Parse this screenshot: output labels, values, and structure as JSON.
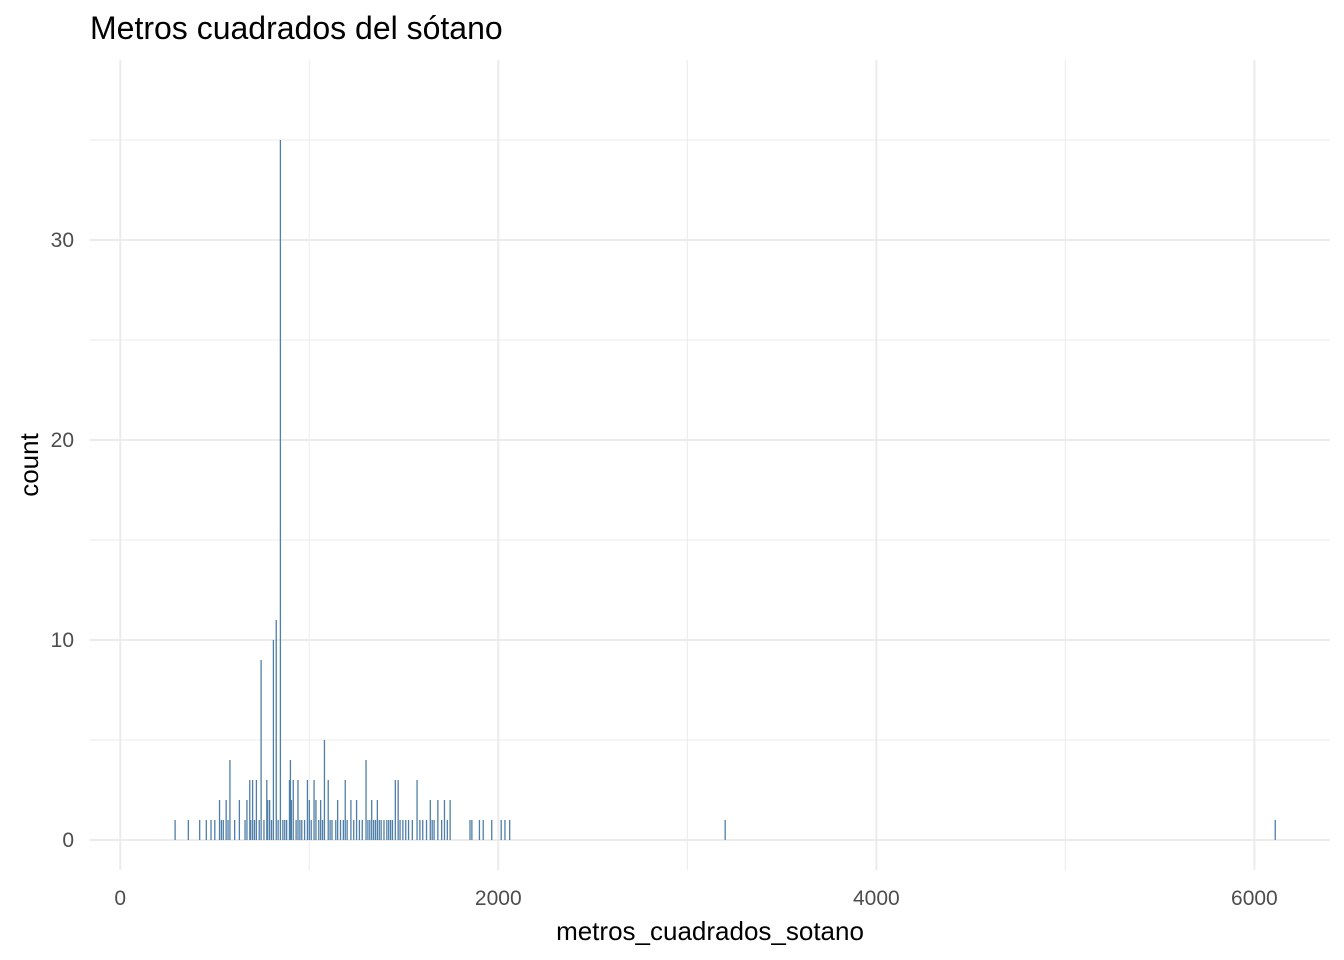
{
  "chart_data": {
    "type": "bar",
    "title": "Metros cuadrados del sótano",
    "xlabel": "metros_cuadrados_sotano",
    "ylabel": "count",
    "xlim": [
      -160,
      6400
    ],
    "ylim": [
      -1.5,
      39
    ],
    "x_ticks": [
      0,
      2000,
      4000,
      6000
    ],
    "x_tick_labels": [
      "0",
      "2000",
      "4000",
      "6000"
    ],
    "y_ticks": [
      0,
      10,
      20,
      30
    ],
    "y_tick_labels": [
      "0",
      "10",
      "20",
      "30"
    ],
    "x_minor_gridlines": [
      1000,
      3000,
      5000
    ],
    "y_minor_gridlines": [
      5,
      15,
      25,
      35
    ],
    "grid": true,
    "bar_color": "#4f7fa8",
    "grid_color": "#ebebeb",
    "x": [
      290,
      360,
      420,
      455,
      480,
      500,
      525,
      535,
      545,
      560,
      570,
      580,
      605,
      630,
      660,
      670,
      685,
      690,
      700,
      710,
      720,
      735,
      745,
      760,
      775,
      780,
      790,
      800,
      810,
      825,
      835,
      847,
      860,
      870,
      880,
      895,
      900,
      905,
      915,
      930,
      940,
      950,
      960,
      975,
      990,
      1000,
      1010,
      1025,
      1035,
      1050,
      1060,
      1070,
      1080,
      1100,
      1110,
      1120,
      1140,
      1150,
      1165,
      1180,
      1190,
      1200,
      1220,
      1235,
      1250,
      1265,
      1280,
      1300,
      1310,
      1320,
      1330,
      1340,
      1350,
      1360,
      1370,
      1380,
      1395,
      1410,
      1420,
      1430,
      1440,
      1455,
      1470,
      1480,
      1495,
      1510,
      1525,
      1545,
      1570,
      1585,
      1600,
      1620,
      1640,
      1650,
      1660,
      1680,
      1700,
      1715,
      1730,
      1745,
      1850,
      1860,
      1900,
      1920,
      1965,
      2015,
      2035,
      2060,
      3200,
      6110
    ],
    "values": [
      1,
      1,
      1,
      1,
      1,
      1,
      2,
      1,
      1,
      2,
      1,
      4,
      1,
      2,
      1,
      2,
      3,
      1,
      3,
      1,
      3,
      1,
      9,
      1,
      3,
      2,
      2,
      1,
      10,
      11,
      1,
      35,
      1,
      1,
      1,
      3,
      4,
      2,
      3,
      1,
      3,
      1,
      1,
      1,
      3,
      2,
      1,
      3,
      2,
      1,
      2,
      1,
      5,
      3,
      1,
      1,
      1,
      2,
      1,
      1,
      3,
      1,
      2,
      1,
      2,
      1,
      1,
      4,
      1,
      1,
      2,
      1,
      1,
      2,
      1,
      1,
      1,
      1,
      1,
      1,
      1,
      3,
      3,
      1,
      1,
      1,
      1,
      1,
      3,
      1,
      1,
      1,
      2,
      1,
      1,
      2,
      1,
      2,
      1,
      2,
      1,
      1,
      1,
      1,
      1,
      1,
      1,
      1,
      1,
      1
    ]
  }
}
